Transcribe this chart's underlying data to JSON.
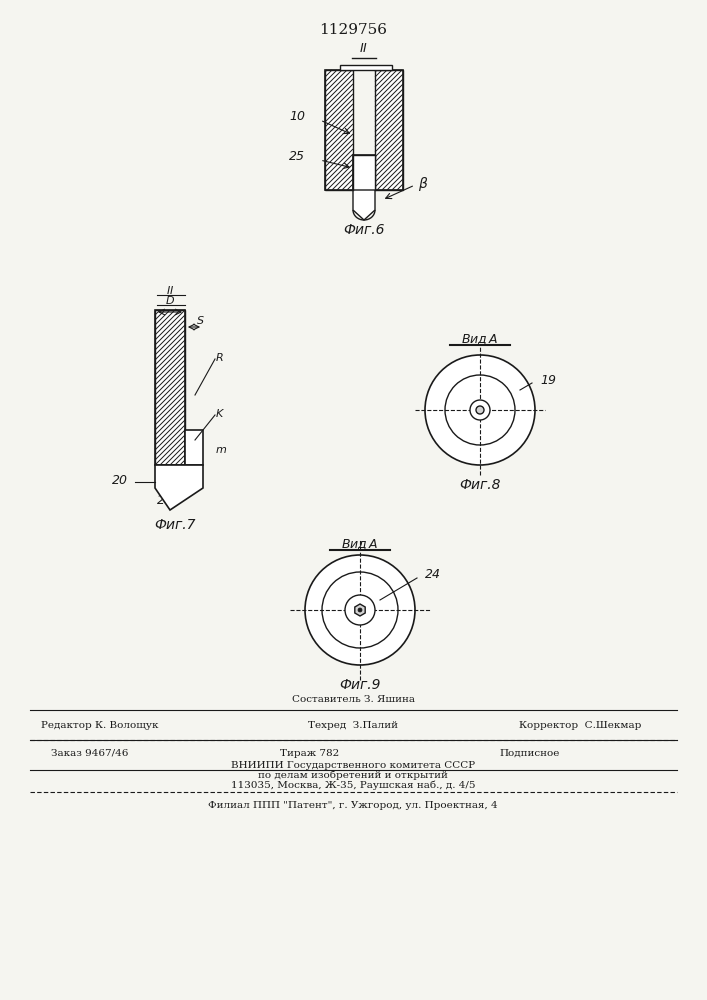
{
  "patent_number": "1129756",
  "bg_color": "#f5f5f0",
  "line_color": "#1a1a1a",
  "hatch_color": "#1a1a1a",
  "fig6_label": "Фиг.6",
  "fig7_label": "Фиг.7",
  "fig8_label": "Фиг.8",
  "fig9_label": "Фиг.9",
  "footer_line1": "Составитель З. Яшина",
  "footer_line2a": "Редактор К. Волощук",
  "footer_line2b": "Техред  З.Палий",
  "footer_line2c": "Корректор  С.Шекмар",
  "footer_line3a": "Заказ 9467/46",
  "footer_line3b": "Тираж 782",
  "footer_line3c": "Подписное",
  "footer_line4": "ВНИИПИ Государственного комитета СССР",
  "footer_line5": "по делам изобретений и открытий",
  "footer_line6": "113035, Москва, Ж-35, Раушская наб., д. 4/5",
  "footer_line7": "Филиал ППП \"Патент\", г. Ужгород, ул. Проектная, 4"
}
